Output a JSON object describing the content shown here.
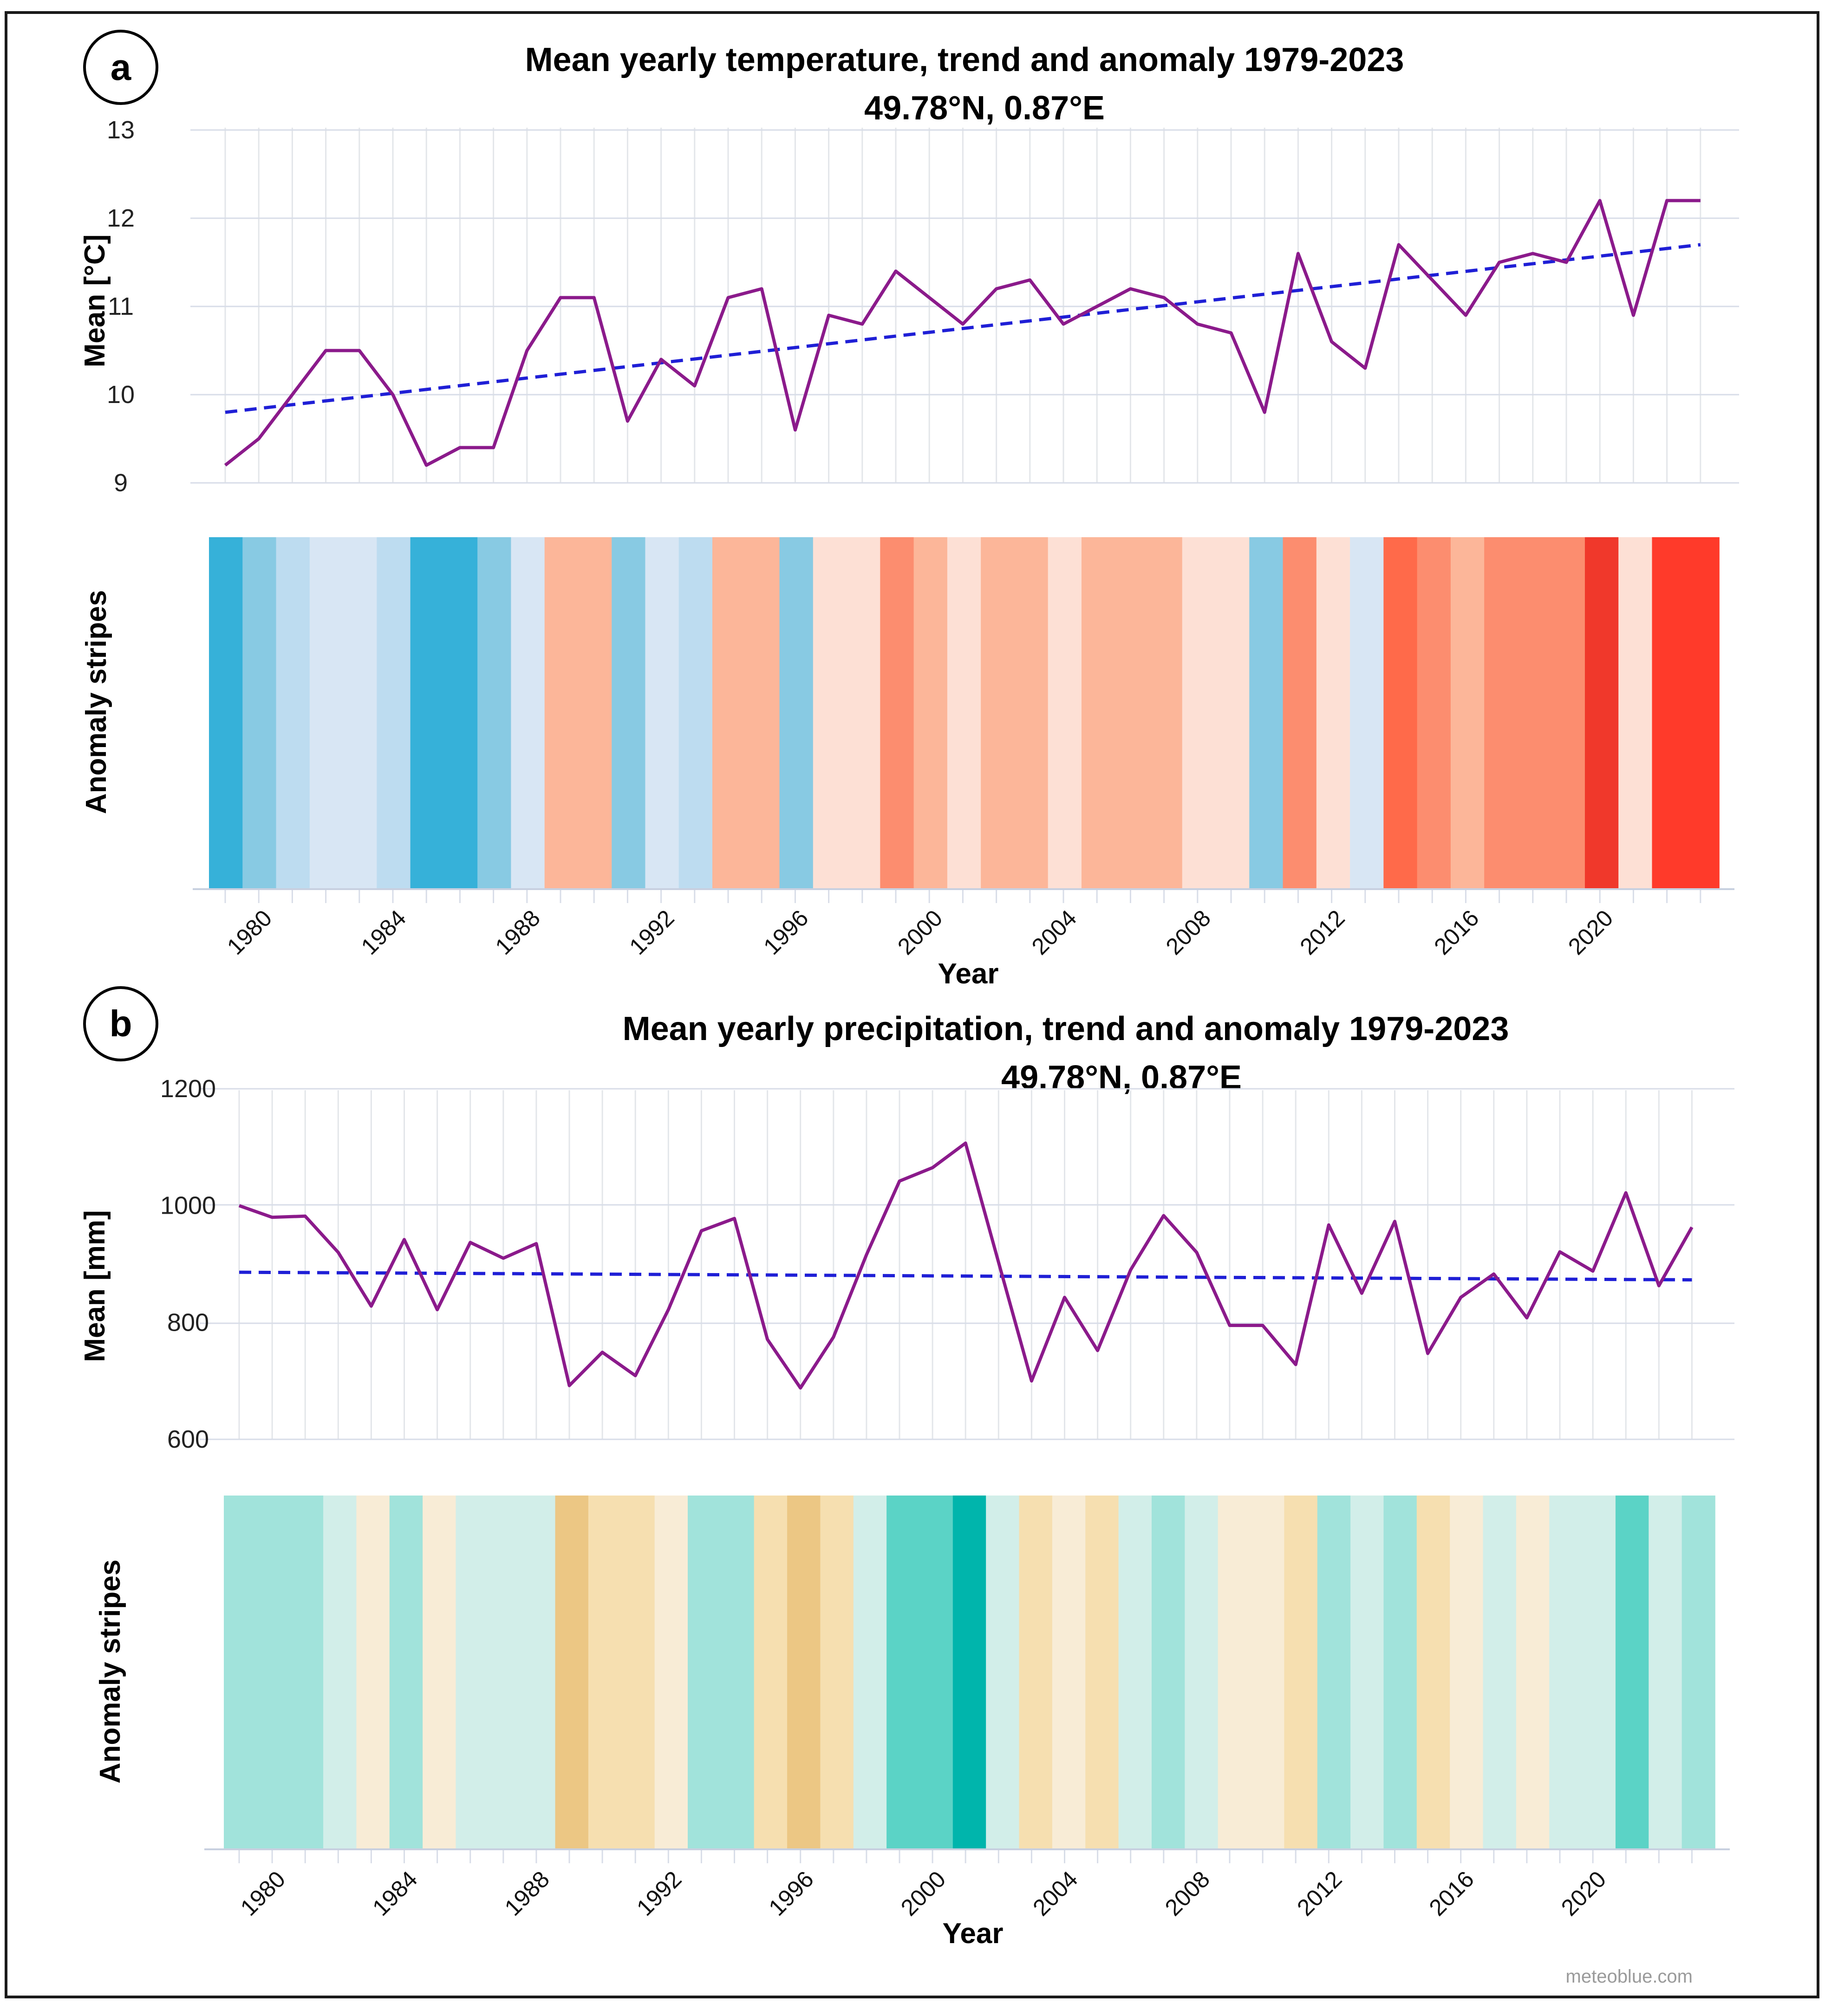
{
  "credit": "meteoblue.com",
  "chart_data": [
    {
      "type": "line",
      "panel_label": "a",
      "title": "Mean yearly temperature, trend and anomaly 1979-2023",
      "subtitle": "49.78°N,  0.87°E",
      "xlabel": "Year",
      "ylabel": "Mean [°C]",
      "stripes_label": "Anomaly stripes",
      "ylim": [
        9,
        13
      ],
      "yticks": [
        "9",
        "10",
        "11",
        "12",
        "13"
      ],
      "xticks": [
        "1980",
        "1984",
        "1988",
        "1992",
        "1996",
        "2000",
        "2004",
        "2008",
        "2012",
        "2016",
        "2020"
      ],
      "x": [
        1979,
        1980,
        1981,
        1982,
        1983,
        1984,
        1985,
        1986,
        1987,
        1988,
        1989,
        1990,
        1991,
        1992,
        1993,
        1994,
        1995,
        1996,
        1997,
        1998,
        1999,
        2000,
        2001,
        2002,
        2003,
        2004,
        2005,
        2006,
        2007,
        2008,
        2009,
        2010,
        2011,
        2012,
        2013,
        2014,
        2015,
        2016,
        2017,
        2018,
        2019,
        2020,
        2021,
        2022,
        2023
      ],
      "series": [
        {
          "name": "Mean",
          "color": "#8b1a8b",
          "values": [
            9.2,
            9.5,
            10.0,
            10.5,
            10.5,
            10.0,
            9.2,
            9.4,
            9.4,
            10.5,
            11.1,
            11.1,
            9.7,
            10.4,
            10.1,
            11.1,
            11.2,
            9.6,
            10.9,
            10.8,
            11.4,
            11.1,
            10.8,
            11.2,
            11.3,
            10.8,
            11.0,
            11.2,
            11.1,
            10.8,
            10.7,
            9.8,
            11.6,
            10.6,
            10.3,
            11.7,
            11.3,
            10.9,
            11.5,
            11.6,
            11.5,
            12.2,
            10.9,
            12.2,
            12.2
          ]
        },
        {
          "name": "Trend",
          "color": "#1f1fd6",
          "style": "dashed",
          "values_endpoints": [
            9.8,
            11.7
          ]
        }
      ],
      "stripe_colors": [
        "#36b1d9",
        "#88cae3",
        "#bddcf0",
        "#d8e6f4",
        "#d8e6f4",
        "#bddcf0",
        "#36b1d9",
        "#36b1d9",
        "#88cae3",
        "#d8e6f4",
        "#fcb699",
        "#fcb699",
        "#88cae3",
        "#d8e6f4",
        "#bddcf0",
        "#fcb699",
        "#fcb699",
        "#88cae3",
        "#fde0d5",
        "#fde0d5",
        "#fc8d6f",
        "#fcb699",
        "#fde0d5",
        "#fcb699",
        "#fcb699",
        "#fde0d5",
        "#fcb699",
        "#fcb699",
        "#fcb699",
        "#fde0d5",
        "#fde0d5",
        "#88cae3",
        "#fc8d6f",
        "#fde0d5",
        "#d8e6f4",
        "#ff6a4a",
        "#fc8d6f",
        "#fcb699",
        "#fc8d6f",
        "#fc8d6f",
        "#fc8d6f",
        "#f0382b",
        "#fde0d5",
        "#ff3a2a",
        "#ff3a2a"
      ]
    },
    {
      "type": "line",
      "panel_label": "b",
      "title": "Mean yearly precipitation, trend and anomaly 1979-2023",
      "subtitle": "49.78°N,  0.87°E",
      "xlabel": "Year",
      "ylabel": "Mean [mm]",
      "stripes_label": "Anomaly stripes",
      "ylim": [
        600,
        1200
      ],
      "yticks": [
        "600",
        "800",
        "1000",
        "1200"
      ],
      "xticks": [
        "1980",
        "1984",
        "1988",
        "1992",
        "1996",
        "2000",
        "2004",
        "2008",
        "2012",
        "2016",
        "2020"
      ],
      "x": [
        1979,
        1980,
        1981,
        1982,
        1983,
        1984,
        1985,
        1986,
        1987,
        1988,
        1989,
        1990,
        1991,
        1992,
        1993,
        1994,
        1995,
        1996,
        1997,
        1998,
        1999,
        2000,
        2001,
        2002,
        2003,
        2004,
        2005,
        2006,
        2007,
        2008,
        2009,
        2010,
        2011,
        2012,
        2013,
        2014,
        2015,
        2016,
        2017,
        2018,
        2019,
        2020,
        2021,
        2022,
        2023
      ],
      "series": [
        {
          "name": "Mean",
          "color": "#8b1a8b",
          "values": [
            1000,
            980,
            982,
            920,
            828,
            942,
            822,
            937,
            910,
            935,
            692,
            749,
            709,
            822,
            957,
            978,
            771,
            688,
            775,
            916,
            1042,
            1065,
            1107,
            903,
            700,
            843,
            752,
            890,
            983,
            920,
            795,
            795,
            728,
            967,
            850,
            973,
            747,
            843,
            883,
            808,
            921,
            888,
            1022,
            863,
            963
          ]
        },
        {
          "name": "Trend",
          "color": "#1f1fd6",
          "style": "dashed",
          "values_endpoints": [
            886,
            873
          ]
        }
      ],
      "stripe_colors": [
        "#a1e3db",
        "#a1e3db",
        "#a1e3db",
        "#d2eee9",
        "#f8ecd6",
        "#a1e3db",
        "#f8ecd6",
        "#d2eee9",
        "#d2eee9",
        "#d2eee9",
        "#ecc784",
        "#f6dfb0",
        "#f6dfb0",
        "#f8ecd6",
        "#a1e3db",
        "#a1e3db",
        "#f6dfb0",
        "#ecc784",
        "#f6dfb0",
        "#d2eee9",
        "#5bd3c6",
        "#5bd3c6",
        "#00b5ac",
        "#d2eee9",
        "#f6dfb0",
        "#f8ecd6",
        "#f6dfb0",
        "#d2eee9",
        "#a1e3db",
        "#d2eee9",
        "#f8ecd6",
        "#f8ecd6",
        "#f6dfb0",
        "#a1e3db",
        "#d2eee9",
        "#a1e3db",
        "#f6dfb0",
        "#f8ecd6",
        "#d2eee9",
        "#f8ecd6",
        "#d2eee9",
        "#d2eee9",
        "#5bd3c6",
        "#d2eee9",
        "#a1e3db"
      ]
    }
  ]
}
